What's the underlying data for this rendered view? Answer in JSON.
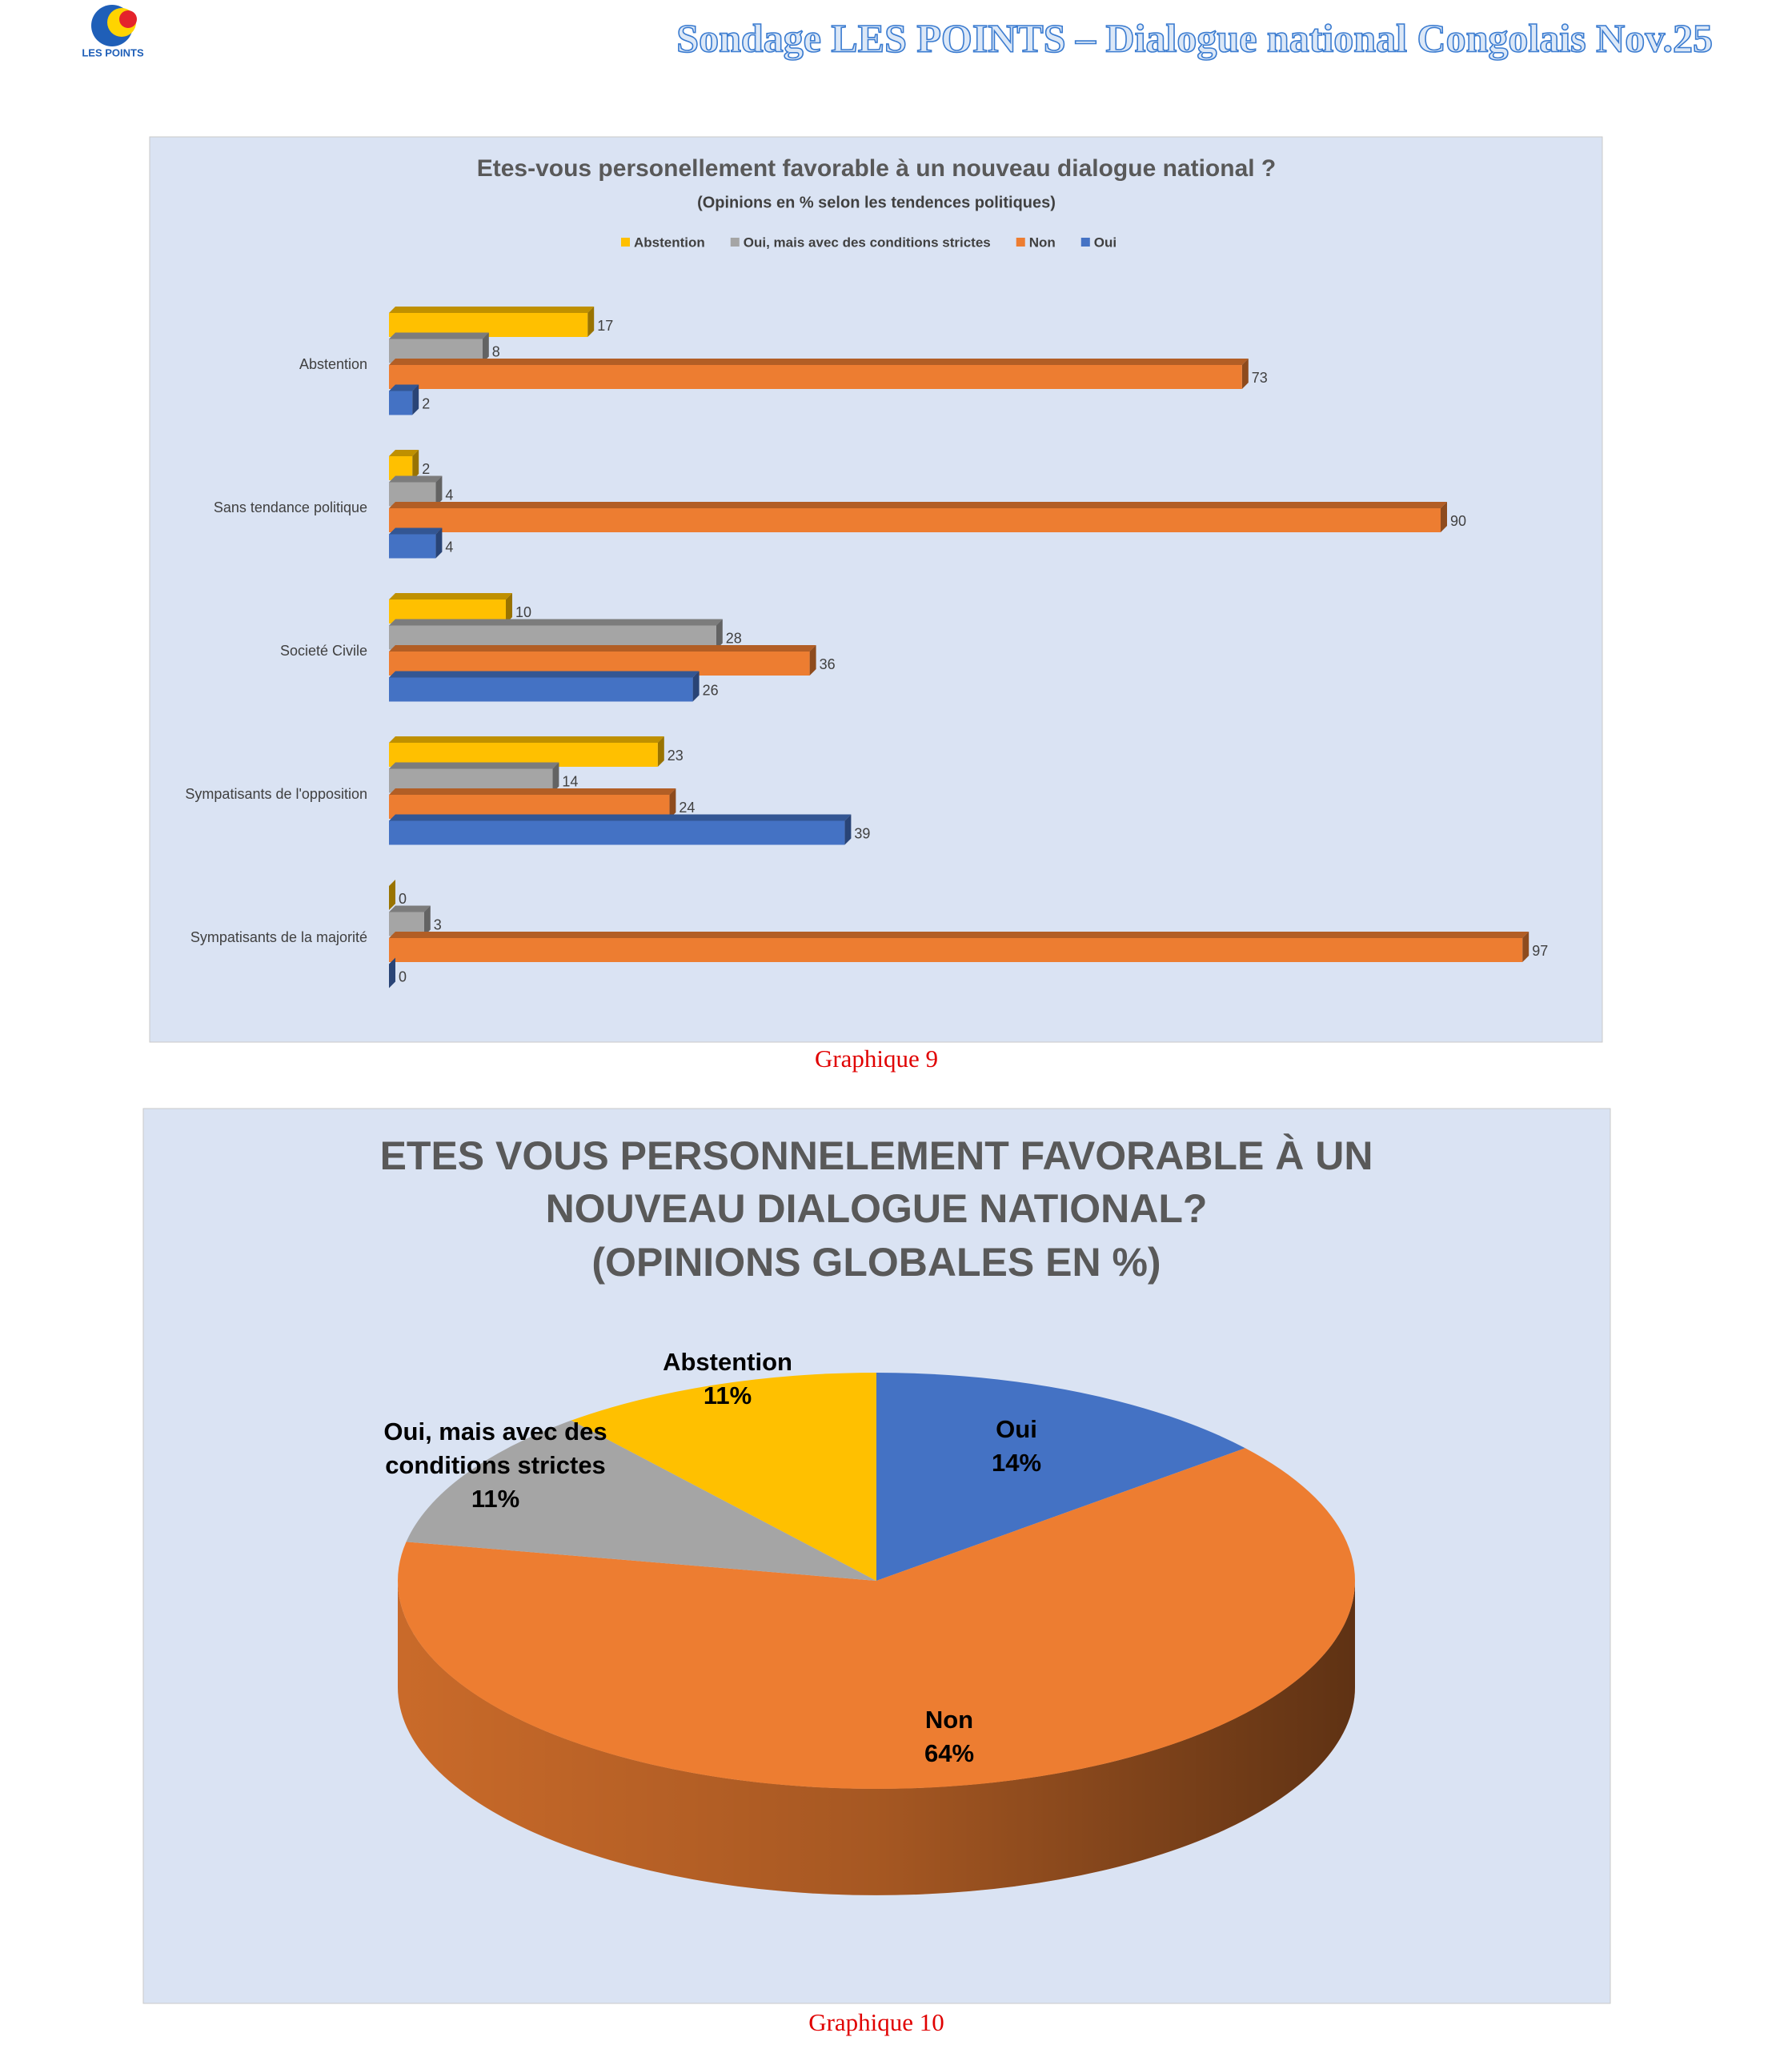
{
  "header": {
    "logo_text": "LES POINTS",
    "title": "Sondage LES POINTS – Dialogue national Congolais  Nov.25"
  },
  "chart_data": [
    {
      "type": "bar",
      "orientation": "horizontal",
      "title": "Etes-vous personellement favorable à un nouveau dialogue national ?",
      "subtitle": "(Opinions en % selon les tendences politiques)",
      "categories": [
        "Abstention",
        "Sans tendance politique",
        "Societé Civile",
        "Sympatisants de l'opposition",
        "Sympatisants de la majorité"
      ],
      "series": [
        {
          "name": "Abstention",
          "color": "#ffc000",
          "values": [
            17,
            2,
            10,
            23,
            0
          ]
        },
        {
          "name": "Oui, mais avec des conditions strictes",
          "color": "#a5a5a5",
          "values": [
            8,
            4,
            28,
            14,
            3
          ]
        },
        {
          "name": "Non",
          "color": "#ed7d31",
          "values": [
            73,
            90,
            36,
            24,
            97
          ]
        },
        {
          "name": "Oui",
          "color": "#4472c4",
          "values": [
            2,
            4,
            26,
            39,
            0
          ]
        }
      ],
      "xlim": [
        0,
        100
      ],
      "legend": "top"
    },
    {
      "type": "pie",
      "title": [
        "ETES VOUS PERSONNELEMENT FAVORABLE À UN",
        "NOUVEAU DIALOGUE NATIONAL?",
        "(OPINIONS GLOBALES EN %)"
      ],
      "categories": [
        "Oui",
        "Non",
        "Oui, mais avec des conditions strictes",
        "Abstention"
      ],
      "values": [
        14,
        64,
        11,
        11
      ],
      "value_labels": [
        "14%",
        "64%",
        "11%",
        "11%"
      ],
      "colors": [
        "#4472c4",
        "#ed7d31",
        "#a5a5a5",
        "#ffc000"
      ]
    }
  ],
  "captions": [
    "Graphique 9",
    "Graphique 10"
  ]
}
